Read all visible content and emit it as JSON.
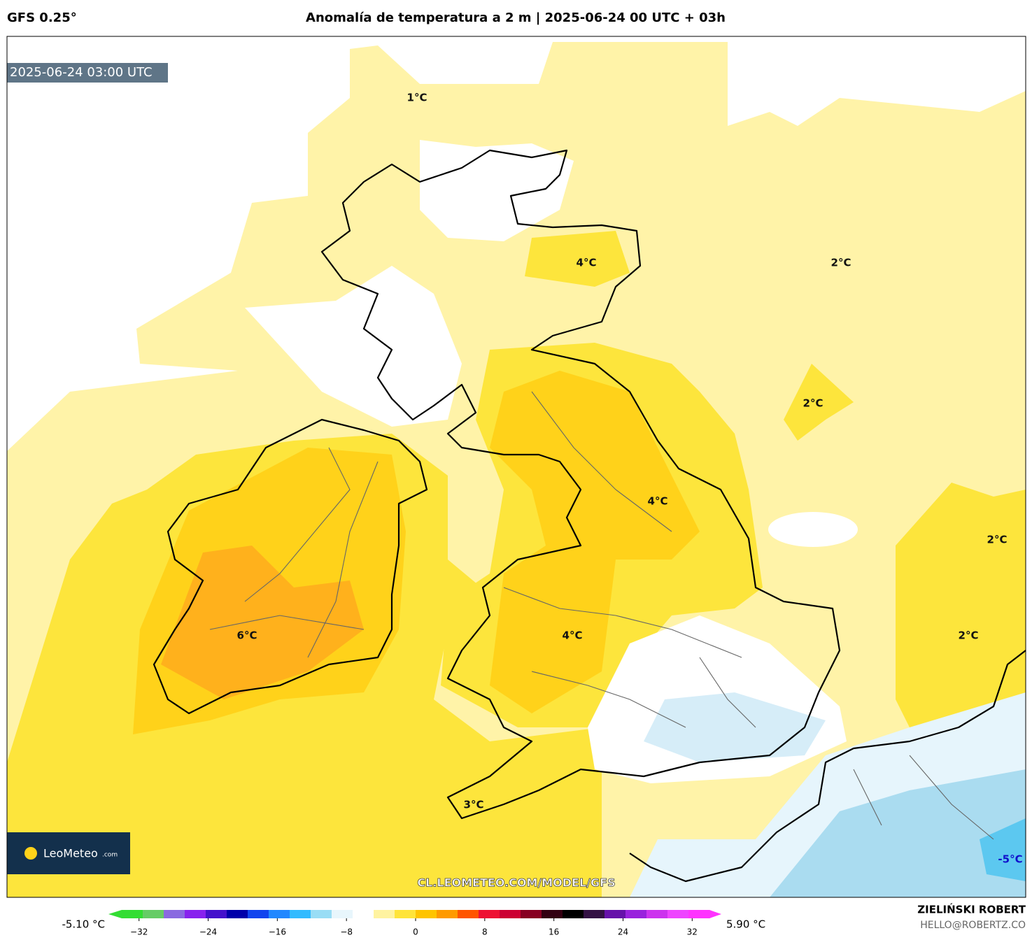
{
  "header": {
    "model": "GFS 0.25°",
    "title": "Anomalía de temperatura a 2 m | 2025-06-24 00 UTC + 03h"
  },
  "map": {
    "timestamp": "2025-06-24 03:00 UTC",
    "labels": [
      "1°C",
      "4°C",
      "2°C",
      "2°C",
      "4°C",
      "2°C",
      "6°C",
      "4°C",
      "2°C",
      "3°C",
      "-5°C"
    ],
    "watermark": "CL.LEOMETEO.COM/MODEL/GFS",
    "logo": {
      "name": "LeoMeteo",
      "suffix": ".com"
    }
  },
  "colorbar": {
    "min_label": "-5.10 °C",
    "max_label": "5.90 °C",
    "lim": [
      -34,
      34
    ],
    "ticks": [
      {
        "value": -32,
        "label": "−32"
      },
      {
        "value": -24,
        "label": "−24"
      },
      {
        "value": -16,
        "label": "−16"
      },
      {
        "value": -8,
        "label": "−8"
      },
      0,
      8,
      16,
      24,
      32
    ],
    "colors": [
      "#33dd33",
      "#66cc66",
      "#8a6ae0",
      "#8822ee",
      "#4411cc",
      "#0000aa",
      "#1144ee",
      "#2288ff",
      "#33bbff",
      "#99ddf5",
      "#e8f6fc",
      "#ffffff",
      "#fff3a0",
      "#ffe43a",
      "#ffc400",
      "#ff9a00",
      "#ff5500",
      "#ee1133",
      "#cc0033",
      "#880022",
      "#330011",
      "#000000",
      "#331144",
      "#6611aa",
      "#9922dd",
      "#cc33ee",
      "#ee44ff",
      "#ff33ff"
    ]
  },
  "footer": {
    "author": "ZIELIŃSKI ROBERT",
    "email": "HELLO@ROBERTZ.CO"
  }
}
